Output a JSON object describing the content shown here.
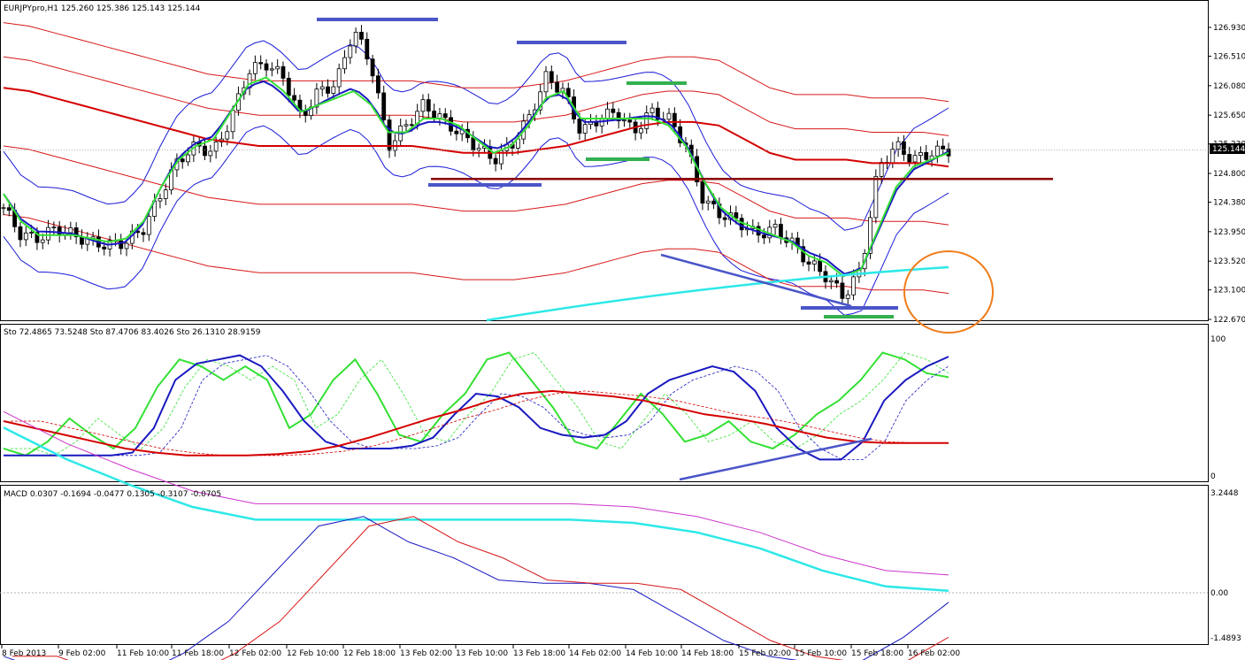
{
  "window": {
    "title": "EURJPYpro,H1",
    "ohlc": "125.260 125.386 125.143 125.144",
    "current_price_label": "125.144"
  },
  "chart_data": [
    {
      "type": "candlestick",
      "title": "EURJPYpro,H1  125.260 125.386 125.143 125.144",
      "y_ticks": [
        "126.930",
        "126.510",
        "126.080",
        "125.650",
        "125.230",
        "124.800",
        "124.380",
        "123.950",
        "123.520",
        "123.100",
        "122.670"
      ],
      "ylim": [
        122.62,
        127.18
      ],
      "current_price": 125.144,
      "horizontal_levels": [
        124.72
      ],
      "x_tick_labels": [
        "8 Feb 2013",
        "9 Feb 02:00",
        "11 Feb 10:00",
        "11 Feb 18:00",
        "12 Feb 02:00",
        "12 Feb 10:00",
        "12 Feb 18:00",
        "13 Feb 02:00",
        "13 Feb 10:00",
        "13 Feb 18:00",
        "14 Feb 02:00",
        "14 Feb 10:00",
        "14 Feb 18:00",
        "15 Feb 02:00",
        "15 Feb 10:00",
        "15 Feb 18:00",
        "16 Feb 02:00"
      ],
      "series": [
        {
          "indicator": "close (approx. every 4 bars)",
          "values": [
            124.3,
            123.9,
            123.85,
            124.0,
            123.9,
            123.8,
            123.75,
            123.8,
            124.0,
            124.5,
            125.0,
            125.2,
            125.1,
            125.6,
            126.3,
            126.4,
            126.2,
            125.6,
            126.0,
            126.1,
            126.9,
            126.4,
            125.2,
            125.5,
            125.8,
            125.6,
            125.4,
            125.2,
            125.0,
            125.2,
            125.6,
            126.2,
            126.0,
            125.4,
            125.6,
            125.7,
            125.4,
            125.7,
            125.6,
            125.2,
            124.4,
            124.2,
            124.1,
            123.9,
            124.0,
            123.8,
            123.5,
            123.3,
            123.0,
            123.4,
            124.9,
            125.2,
            125.0,
            125.1,
            125.144
          ]
        },
        {
          "indicator": "fast MA (green)",
          "values": [
            124.5,
            124.1,
            123.9,
            123.9,
            123.9,
            123.85,
            123.8,
            123.85,
            124.1,
            124.6,
            125.0,
            125.2,
            125.3,
            125.7,
            126.1,
            126.2,
            126.0,
            125.7,
            125.8,
            125.9,
            126.0,
            125.8,
            125.4,
            125.4,
            125.6,
            125.6,
            125.5,
            125.3,
            125.1,
            125.2,
            125.5,
            125.9,
            126.0,
            125.6,
            125.6,
            125.6,
            125.6,
            125.6,
            125.5,
            125.2,
            124.7,
            124.3,
            124.1,
            124.0,
            123.9,
            123.8,
            123.6,
            123.5,
            123.3,
            123.4,
            124.0,
            124.6,
            124.9,
            125.0,
            125.1
          ]
        },
        {
          "indicator": "slow MA (red)",
          "values": [
            126.05,
            126.0,
            125.9,
            125.8,
            125.7,
            125.6,
            125.5,
            125.4,
            125.3,
            125.25,
            125.2,
            125.2,
            125.2,
            125.2,
            125.2,
            125.2,
            125.2,
            125.15,
            125.1,
            125.1,
            125.1,
            125.15,
            125.2,
            125.3,
            125.4,
            125.5,
            125.55,
            125.55,
            125.5,
            125.3,
            125.1,
            125.0,
            125.0,
            125.0,
            124.95,
            124.95,
            124.95,
            124.9
          ]
        }
      ]
    },
    {
      "type": "line",
      "title": "Sto 72.4865 73.5248  Sto 87.4706 83.4026  Sto 26.1310 28.9159",
      "y_ticks": [
        "100",
        "0"
      ],
      "ylim": [
        0,
        100
      ],
      "series": [
        {
          "name": "Sto 72.4865 73.5248",
          "values": [
            20,
            15,
            25,
            42,
            30,
            20,
            35,
            65,
            85,
            80,
            70,
            80,
            70,
            35,
            45,
            70,
            85,
            60,
            30,
            25,
            45,
            60,
            85,
            90,
            70,
            50,
            25,
            20,
            40,
            60,
            45,
            25,
            30,
            40,
            25,
            20,
            30,
            45,
            55,
            70,
            90,
            85,
            75,
            72
          ]
        },
        {
          "name": "Sto 87.4706 83.4026",
          "values": [
            15,
            15,
            15,
            15,
            15,
            15,
            17,
            35,
            70,
            82,
            85,
            88,
            80,
            62,
            40,
            25,
            20,
            20,
            20,
            22,
            28,
            45,
            60,
            58,
            50,
            35,
            30,
            28,
            30,
            40,
            60,
            70,
            75,
            80,
            76,
            62,
            35,
            20,
            12,
            12,
            25,
            55,
            70,
            80,
            87
          ]
        },
        {
          "name": "Sto 26.1310 28.9159",
          "values": [
            40,
            35,
            30,
            25,
            20,
            17,
            15,
            15,
            15,
            16,
            18,
            22,
            28,
            35,
            42,
            48,
            55,
            60,
            62,
            60,
            58,
            55,
            50,
            45,
            42,
            38,
            33,
            28,
            25,
            24,
            24,
            24
          ]
        }
      ]
    },
    {
      "type": "line",
      "title": "MACD 0.0307 -0.1694 -0.0477  0.1305 -0.3107 -0.0705",
      "y_ticks": [
        "3.2448",
        "0.00",
        "-1.4893"
      ],
      "ylim": [
        -1.4893,
        3.2448
      ],
      "series": [
        {
          "name": "MACD 0.0307 -0.1694 -0.0477",
          "values": [
            2.6,
            2.1,
            1.7,
            1.35,
            1.15,
            1.15,
            1.15,
            1.15,
            1.15,
            1.15,
            1.1,
            0.95,
            0.7,
            0.35,
            0.1,
            0.03
          ]
        },
        {
          "name": "0.1305 -0.3107 -0.0705",
          "values": [
            -1.0,
            -1.25,
            -1.3,
            -1.3,
            -0.95,
            -0.45,
            0.3,
            1.05,
            1.2,
            0.8,
            0.55,
            0.2,
            0.15,
            0.15,
            0.05,
            -0.35,
            -0.75,
            -1.0,
            -1.1,
            -1.1,
            -0.7,
            -0.15
          ]
        }
      ]
    }
  ],
  "colors": {
    "candle_bull": "#ffffff",
    "candle_bear": "#000000",
    "bollinger_blue": "#1a1ad8",
    "mid_blue": "#1919c0",
    "fast_green": "#33e033",
    "envelope_red": "#d81818",
    "slow_red": "#d40000",
    "trend_cyan": "#2ee8e8",
    "support_darkred": "#8b0000",
    "drawn_blue": "#4a55c8",
    "drawn_green": "#33b050",
    "circle_orange": "#f07c1a",
    "macd_magenta": "#cc33cc"
  }
}
